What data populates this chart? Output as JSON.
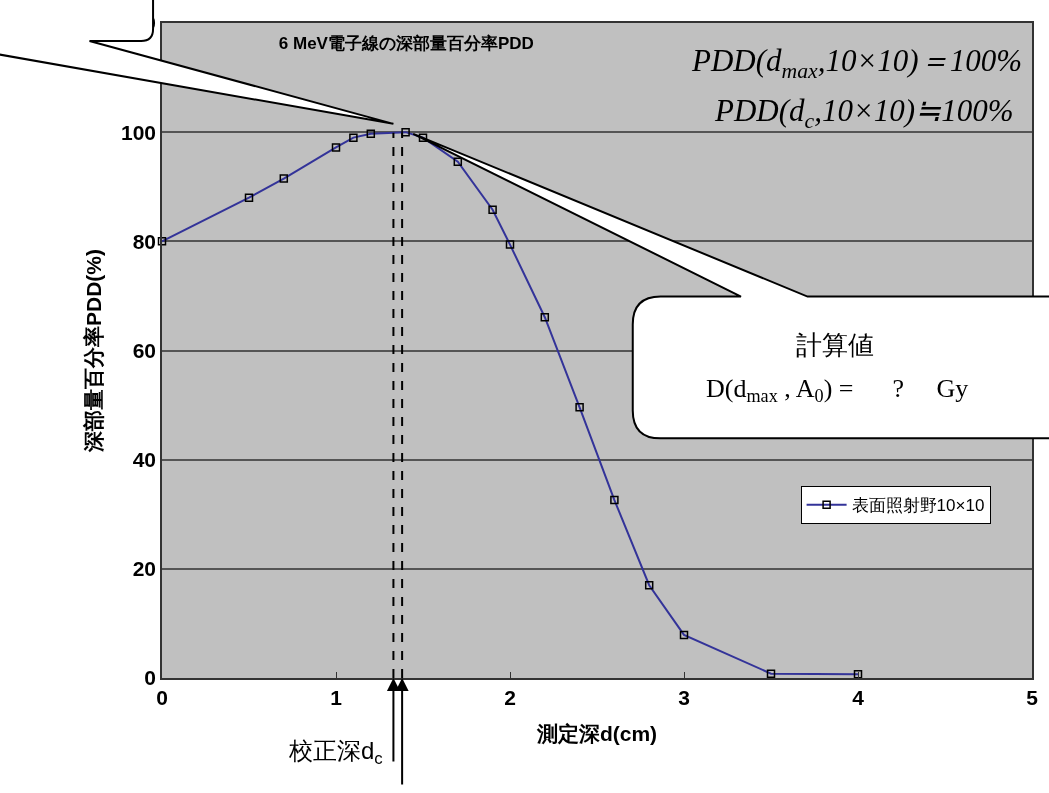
{
  "chart_data": {
    "type": "line",
    "title": "6 MeV電子線の深部量百分率PDD",
    "xlabel": "測定深d(cm)",
    "ylabel": "深部量百分率PDD(%)",
    "x": [
      0,
      0.5,
      0.7,
      1.0,
      1.1,
      1.2,
      1.4,
      1.5,
      1.7,
      1.9,
      2.0,
      2.2,
      2.4,
      2.6,
      2.8,
      3.0,
      3.5,
      4.0
    ],
    "series": [
      {
        "name": "表面照射野10×10",
        "color": "#333399",
        "values": [
          80,
          88,
          91.5,
          97.2,
          99,
          99.7,
          100,
          99,
          94.6,
          85.8,
          79.4,
          66.1,
          49.6,
          32.6,
          17,
          7.9,
          0.8,
          0.7
        ]
      }
    ],
    "xlim": [
      0,
      5
    ],
    "xticks": [
      0,
      1,
      2,
      3,
      4,
      5
    ],
    "ylim": [
      0,
      120
    ],
    "yticks": [
      0,
      20,
      40,
      60,
      80,
      100,
      120
    ],
    "grid": "y",
    "legend": "right",
    "marker": "square",
    "line_style": "solid",
    "ref_lines": [
      {
        "axis": "x",
        "value": 1.33,
        "label": "校正深d$_{c}$",
        "color": "#000000",
        "line_style": "dashed"
      },
      {
        "axis": "x",
        "value": 1.38,
        "color": "#000000",
        "line_style": "dashed"
      }
    ],
    "annotations": [
      "PDD(d$_{max}$,10×10)＝100%",
      "PDD(d$_{c}$,10×10)≒100%",
      "計算値",
      "D(d$_{max}$ , A$_{0}$) =      ?     Gy"
    ]
  }
}
